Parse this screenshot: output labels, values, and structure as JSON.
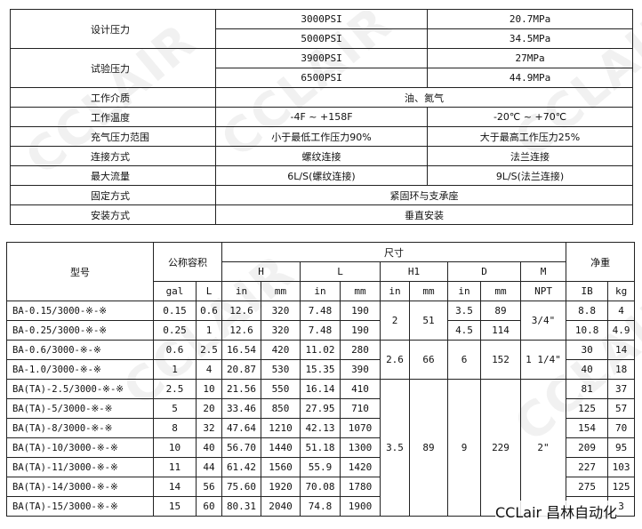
{
  "watermark": "CCLAIR",
  "brand": "CCLair 昌林自动化",
  "spec": {
    "design_pressure": {
      "label": "设计压力",
      "rows": [
        [
          "3000PSI",
          "20.7MPa"
        ],
        [
          "5000PSI",
          "34.5MPa"
        ]
      ]
    },
    "test_pressure": {
      "label": "试验压力",
      "rows": [
        [
          "3900PSI",
          "27MPa"
        ],
        [
          "6500PSI",
          "44.9MPa"
        ]
      ]
    },
    "rows": [
      {
        "label": "工作介质",
        "values": [
          "油、氮气"
        ]
      },
      {
        "label": "工作温度",
        "values": [
          "-4F ~ +158F",
          "-20℃ ~ +70℃"
        ]
      },
      {
        "label": "充气压力范围",
        "values": [
          "小于最低工作压力90%",
          "大于最高工作压力25%"
        ]
      },
      {
        "label": "连接方式",
        "values": [
          "螺纹连接",
          "法兰连接"
        ]
      },
      {
        "label": "最大流量",
        "values": [
          "6L/S(螺纹连接)",
          "9L/S(法兰连接)"
        ]
      },
      {
        "label": "固定方式",
        "values": [
          "紧固环与支承座"
        ]
      },
      {
        "label": "安装方式",
        "values": [
          "垂直安装"
        ]
      }
    ]
  },
  "dims": {
    "headers": {
      "model": "型号",
      "capacity": "公称容积",
      "size": "尺寸",
      "weight": "净重",
      "groups": [
        "H",
        "L",
        "H1",
        "D",
        "M"
      ],
      "units": [
        "gal",
        "L",
        "in",
        "mm",
        "in",
        "mm",
        "in",
        "mm",
        "in",
        "mm",
        "NPT",
        "IB",
        "kg"
      ]
    },
    "rows": [
      [
        "BA-0.15/3000-※-※",
        "0.15",
        "0.6",
        "12.6",
        "320",
        "7.48",
        "190",
        "3.5",
        "89",
        "8.8",
        "4"
      ],
      [
        "BA-0.25/3000-※-※",
        "0.25",
        "1",
        "12.6",
        "320",
        "7.48",
        "190",
        "4.5",
        "114",
        "10.8",
        "4.9"
      ],
      [
        "BA-0.6/3000-※-※",
        "0.6",
        "2.5",
        "16.54",
        "420",
        "11.02",
        "280",
        "30",
        "14"
      ],
      [
        "BA-1.0/3000-※-※",
        "1",
        "4",
        "20.87",
        "530",
        "15.35",
        "390",
        "40",
        "18"
      ],
      [
        "BA(TA)-2.5/3000-※-※",
        "2.5",
        "10",
        "21.56",
        "550",
        "16.14",
        "410",
        "81",
        "37"
      ],
      [
        "BA(TA)-5/3000-※-※",
        "5",
        "20",
        "33.46",
        "850",
        "27.95",
        "710",
        "125",
        "57"
      ],
      [
        "BA(TA)-8/3000-※-※",
        "8",
        "32",
        "47.64",
        "1210",
        "42.13",
        "1070",
        "154",
        "70"
      ],
      [
        "BA(TA)-10/3000-※-※",
        "10",
        "40",
        "56.70",
        "1440",
        "51.18",
        "1300",
        "209",
        "95"
      ],
      [
        "BA(TA)-11/3000-※-※",
        "11",
        "44",
        "61.42",
        "1560",
        "55.9",
        "1420",
        "227",
        "103"
      ],
      [
        "BA(TA)-14/3000-※-※",
        "14",
        "56",
        "75.60",
        "1920",
        "70.08",
        "1780",
        "275",
        "125"
      ],
      [
        "BA(TA)-15/3000-※-※",
        "15",
        "60",
        "80.31",
        "2040",
        "74.8",
        "1900",
        "",
        "3"
      ]
    ],
    "merged": {
      "g1": {
        "H1_in": "2",
        "H1_mm": "51",
        "M": "3/4\""
      },
      "g2": {
        "H1_in": "2.6",
        "H1_mm": "66",
        "D_in": "6",
        "D_mm": "152",
        "M": "1 1/4\""
      },
      "g3": {
        "H1_in": "3.5",
        "H1_mm": "89",
        "D_in": "9",
        "D_mm": "229",
        "M": "2\""
      }
    }
  }
}
